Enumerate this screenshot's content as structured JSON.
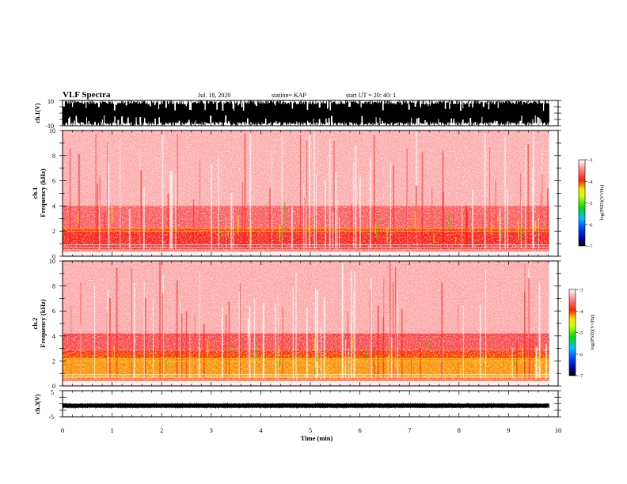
{
  "header": {
    "title": "VLF Spectra",
    "date": "Jul. 18, 2020",
    "station": "station= KAP",
    "start": "start  UT =   20: 40: 1"
  },
  "chart_data": [
    {
      "type": "line",
      "panel": "ch1-waveform",
      "ylabel": "ch.1(V)",
      "ylim": [
        -10,
        10
      ],
      "y_ticks": [
        "10",
        "-10"
      ],
      "xlim": [
        0,
        10
      ],
      "data_extent_min": 9.82,
      "description_values": {
        "typical_range_V": [
          -10,
          10
        ],
        "saturated": true
      }
    },
    {
      "type": "heatmap",
      "panel": "ch1-spectrogram",
      "ylabel": "ch.1\nFrequency (kHz)",
      "ylabel_lines": [
        "ch.1",
        "Frequency (kHz)"
      ],
      "ylim": [
        0,
        10
      ],
      "y_ticks": [
        "0",
        "2",
        "4",
        "6",
        "8",
        "10"
      ],
      "xlim": [
        0,
        10
      ],
      "data_extent_min": 9.82,
      "colorbar": {
        "label": "log(PSD)(V²/Hz)",
        "range": [
          -7,
          -3
        ],
        "ticks": [
          "-3",
          "-4",
          "-5",
          "-6",
          "-7"
        ]
      },
      "approx_log_psd": {
        "below_2.2kHz": -3.8,
        "2.2_to_4kHz": -4.2,
        "above_4kHz": -4.6
      }
    },
    {
      "type": "heatmap",
      "panel": "ch2-spectrogram",
      "ylabel_lines": [
        "ch.2",
        "Frequency (kHz)"
      ],
      "ylim": [
        0,
        10
      ],
      "y_ticks": [
        "0",
        "2",
        "4",
        "6",
        "8",
        "10"
      ],
      "xlim": [
        0,
        10
      ],
      "data_extent_min": 9.82,
      "colorbar": {
        "label": "log(PSD)(V²/Hz)",
        "range": [
          -7,
          -3
        ],
        "ticks": [
          "-3",
          "-4",
          "-5",
          "-6",
          "-7"
        ]
      },
      "approx_log_psd": {
        "below_2.5kHz": -3.5,
        "2.5_to_4kHz": -4.0,
        "above_4kHz": -4.5
      }
    },
    {
      "type": "line",
      "panel": "ch3-waveform",
      "ylabel": "ch.3(V)",
      "ylim": [
        -5,
        5
      ],
      "y_ticks": [
        "5",
        "-5"
      ],
      "xlim": [
        0,
        10
      ],
      "data_extent_min": 9.82,
      "description_values": {
        "typical_range_V": [
          -1.5,
          0
        ]
      }
    }
  ],
  "xaxis": {
    "label": "Time (min)",
    "ticks": [
      "0",
      "1",
      "2",
      "3",
      "4",
      "5",
      "6",
      "7",
      "8",
      "9",
      "10"
    ]
  },
  "colors": {
    "waveform": "#000000",
    "spectro_low": "#ffffff",
    "spectro_mid": "#ff2020",
    "spectro_high": "#ffee00",
    "spectro_peak": "#00cc00"
  }
}
